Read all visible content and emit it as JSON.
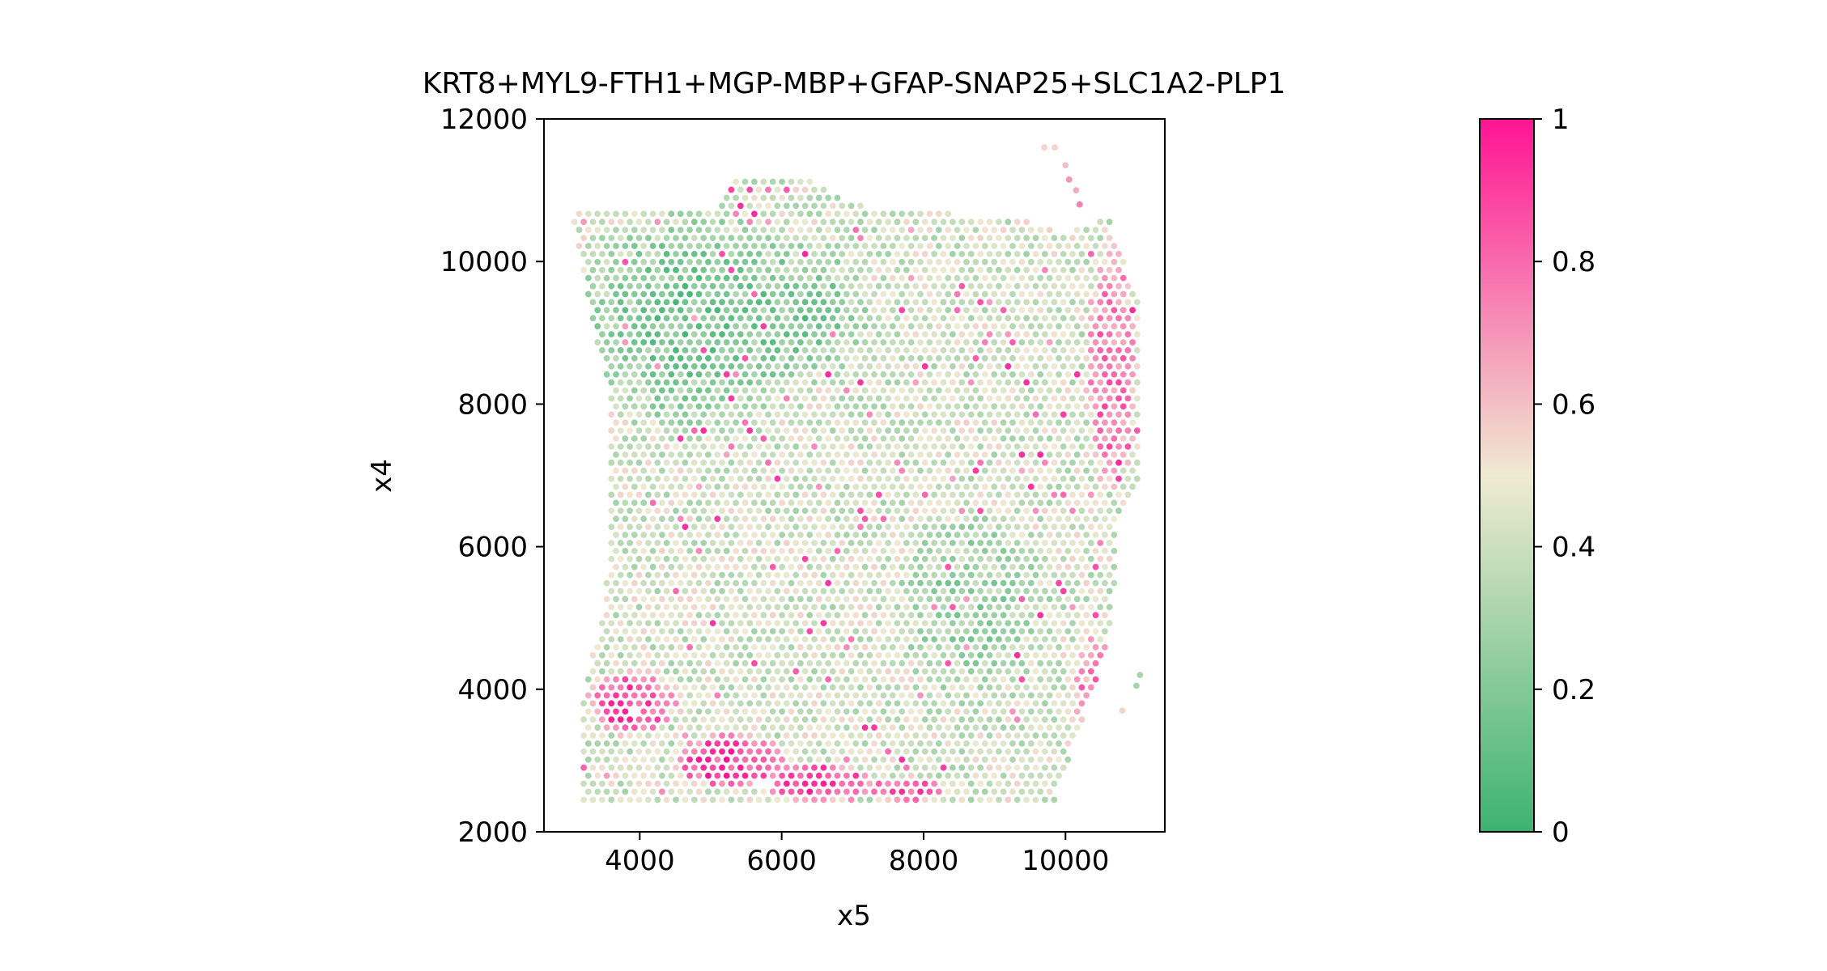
{
  "chart_data": {
    "type": "scatter",
    "title": "KRT8+MYL9-FTH1+MGP-MBP+GFAP-SNAP25+SLC1A2-PLP1",
    "xlabel": "x5",
    "ylabel": "x4",
    "xlim": [
      2650,
      11400
    ],
    "ylim": [
      2000,
      12000
    ],
    "x_ticks": [
      4000,
      6000,
      8000,
      10000
    ],
    "y_ticks": [
      2000,
      4000,
      6000,
      8000,
      10000,
      12000
    ],
    "x_tick_labels": [
      "4000",
      "6000",
      "8000",
      "10000"
    ],
    "y_tick_labels": [
      "2000",
      "4000",
      "6000",
      "8000",
      "10000",
      "12000"
    ],
    "grid": false,
    "colorbar": {
      "range": [
        0,
        1
      ],
      "ticks": [
        0,
        0.2,
        0.4,
        0.6,
        0.8,
        1
      ],
      "tick_labels": [
        "0",
        "0.2",
        "0.4",
        "0.6",
        "0.8",
        "1"
      ],
      "colors": [
        "#3cb371",
        "#f0ead2",
        "#ff1493"
      ],
      "color_stops": [
        0,
        0.5,
        1
      ]
    },
    "spot_spacing": 130,
    "tissue_outline_x5": [
      3050,
      5000,
      5350,
      6300,
      7000,
      9600,
      10000,
      10600,
      11050,
      11050,
      10750,
      10650,
      10350,
      9850,
      9350,
      3200,
      3150,
      3300,
      3500,
      3600,
      3600,
      3300,
      3050
    ],
    "tissue_outline_x4": [
      10700,
      10700,
      11200,
      11200,
      10800,
      10550,
      10400,
      10650,
      9400,
      7000,
      6300,
      4800,
      3900,
      2450,
      2450,
      2450,
      3700,
      4300,
      5200,
      6200,
      8200,
      9200,
      10700
    ],
    "extra_spots_x5": [
      9700,
      9850,
      10000,
      10050,
      10150,
      10200,
      11000,
      11050,
      10800
    ],
    "extra_spots_x4": [
      11600,
      11600,
      11350,
      11150,
      11000,
      10800,
      4050,
      4200,
      3700
    ],
    "extra_spots_value": [
      0.55,
      0.55,
      0.6,
      0.7,
      0.65,
      0.75,
      0.3,
      0.3,
      0.55
    ],
    "low_value_regions": [
      {
        "x5": 4700,
        "x4": 9200,
        "rx": 1800,
        "ry": 1700,
        "value": 0.18
      },
      {
        "x5": 6200,
        "x4": 9300,
        "rx": 1200,
        "ry": 1100,
        "value": 0.2
      },
      {
        "x5": 8700,
        "x4": 5200,
        "rx": 1200,
        "ry": 1500,
        "value": 0.28
      }
    ],
    "high_value_regions": [
      {
        "x5": 3900,
        "x4": 3800,
        "rx": 700,
        "ry": 500,
        "value": 0.85
      },
      {
        "x5": 5300,
        "x4": 3000,
        "rx": 900,
        "ry": 450,
        "value": 0.88
      },
      {
        "x5": 6500,
        "x4": 2700,
        "rx": 900,
        "ry": 300,
        "value": 0.88
      },
      {
        "x5": 7700,
        "x4": 2600,
        "rx": 700,
        "ry": 200,
        "value": 0.8
      },
      {
        "x5": 10650,
        "x4": 8500,
        "rx": 400,
        "ry": 1800,
        "value": 0.75
      },
      {
        "x5": 10400,
        "x4": 4000,
        "rx": 300,
        "ry": 900,
        "value": 0.72
      }
    ],
    "baseline_value": 0.42,
    "value_noise": 0.14,
    "excluded_spots": [
      {
        "x5": 3900,
        "x4": 3700
      },
      {
        "x5": 5750,
        "x4": 2700
      }
    ]
  }
}
